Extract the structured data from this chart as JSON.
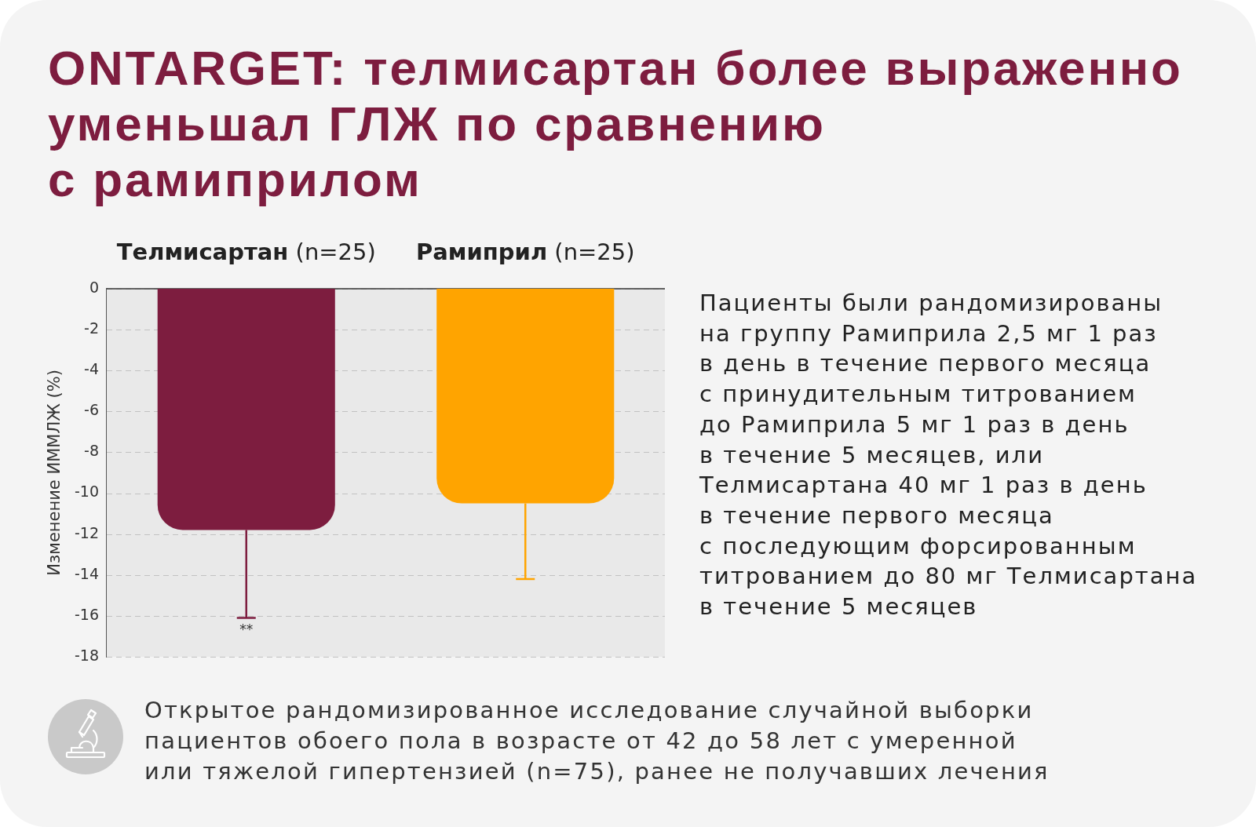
{
  "chart_data": {
    "type": "bar",
    "title": "ONTARGET: телмисартан более выраженно\nуменьшал ГЛЖ по сравнению\nс рамиприлом",
    "ylabel": "Изменение ИММЛЖ (%)",
    "categories": [
      "Телмисартан (n=25)",
      "Рамиприл (n=25)"
    ],
    "values": [
      -11.8,
      -10.5
    ],
    "colors": [
      "#7d1d3f",
      "#ffa400"
    ],
    "errors": [
      [
        -16.1,
        -11.8
      ],
      [
        -14.2,
        -10.5
      ]
    ],
    "ylim": [
      -18,
      0
    ],
    "yticks": [
      0,
      -2,
      -4,
      -6,
      -8,
      -10,
      -12,
      -14,
      -16,
      -18
    ],
    "grid": "y",
    "annotations": [
      "**",
      "Пациенты были рандомизированы\nна группу Рамиприла 2,5 мг 1 раз\nв день в течение первого месяца\nс принудительным титрованием\nдо Рамиприла 5 мг 1 раз в день\nв течение 5 месяцев, или\nТелмисартана 40 мг 1 раз в день\nв течение первого месяца\nс последующим форсированным\nтитрованием до 80 мг Телмисартана\nв течение 5 месяцев",
      "Открытое рандомизированное исследование случайной выборки\nпациентов обоего пола в возрасте от 42 до 58 лет с умеренной\nили тяжелой гипертензией (n=75), ранее не получавших лечения"
    ]
  }
}
